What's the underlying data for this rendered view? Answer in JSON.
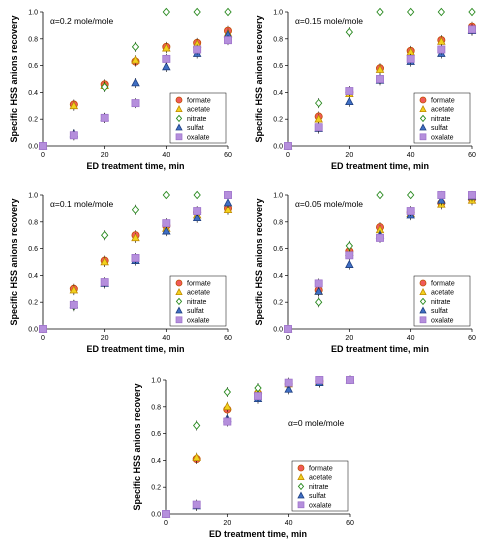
{
  "figure": {
    "colors": {
      "formate": "#f05a5a",
      "acetate": "#f2d21f",
      "nitrate": "#3a9e2e",
      "sulfat": "#3f6fc4",
      "oxalate": "#b58fdc",
      "formate_edge": "#c05000",
      "acetate_edge": "#c08a00",
      "nitrate_edge": "#2a8a20",
      "sulfat_edge": "#1f3f80",
      "oxalate_edge": "#9b6fc9"
    }
  },
  "chart_data": [
    {
      "type": "scatter",
      "annotation": "α=0.2 mole/mole",
      "xlabel": "ED treatment time, min",
      "ylabel": "Specific HSS anions recovery",
      "xlim": [
        0,
        60
      ],
      "ylim": [
        0,
        1.0
      ],
      "xticks": [
        "0",
        "20",
        "40",
        "60"
      ],
      "yticks": [
        "0.0",
        "0.2",
        "0.4",
        "0.6",
        "0.8",
        "1.0"
      ],
      "grid": false,
      "legend_position": "bottom-right",
      "series": [
        {
          "name": "formate",
          "marker": "circle",
          "x": [
            0,
            10,
            20,
            30,
            40,
            50,
            60
          ],
          "y": [
            0,
            0.31,
            0.46,
            0.63,
            0.74,
            0.77,
            0.86
          ]
        },
        {
          "name": "acetate",
          "marker": "triangle",
          "x": [
            0,
            10,
            20,
            30,
            40,
            50,
            60
          ],
          "y": [
            0,
            0.3,
            0.45,
            0.64,
            0.73,
            0.76,
            0.84
          ]
        },
        {
          "name": "nitrate",
          "marker": "diamond",
          "x": [
            0,
            10,
            20,
            30,
            40,
            50,
            60
          ],
          "y": [
            0,
            0.08,
            0.44,
            0.74,
            1.0,
            1.0,
            1.0
          ]
        },
        {
          "name": "sulfat",
          "marker": "triangle",
          "x": [
            0,
            10,
            20,
            30,
            40,
            50,
            60
          ],
          "y": [
            0,
            0.09,
            0.21,
            0.47,
            0.59,
            0.69,
            0.83
          ]
        },
        {
          "name": "oxalate",
          "marker": "square",
          "x": [
            0,
            10,
            20,
            30,
            40,
            50,
            60
          ],
          "y": [
            0,
            0.08,
            0.21,
            0.32,
            0.65,
            0.72,
            0.79
          ]
        }
      ]
    },
    {
      "type": "scatter",
      "annotation": "α=0.15 mole/mole",
      "xlabel": "ED treatment time, min",
      "ylabel": "Specific HSS anions recovery",
      "xlim": [
        0,
        60
      ],
      "ylim": [
        0,
        1.0
      ],
      "xticks": [
        "0",
        "20",
        "40",
        "60"
      ],
      "yticks": [
        "0.0",
        "0.2",
        "0.4",
        "0.6",
        "0.8",
        "1.0"
      ],
      "grid": false,
      "legend_position": "bottom-right",
      "series": [
        {
          "name": "formate",
          "marker": "circle",
          "x": [
            0,
            10,
            20,
            30,
            40,
            50,
            60
          ],
          "y": [
            0,
            0.22,
            0.4,
            0.58,
            0.71,
            0.79,
            0.89
          ]
        },
        {
          "name": "acetate",
          "marker": "triangle",
          "x": [
            0,
            10,
            20,
            30,
            40,
            50,
            60
          ],
          "y": [
            0,
            0.2,
            0.39,
            0.57,
            0.7,
            0.78,
            0.87
          ]
        },
        {
          "name": "nitrate",
          "marker": "diamond",
          "x": [
            0,
            10,
            20,
            30,
            40,
            50,
            60
          ],
          "y": [
            0,
            0.32,
            0.85,
            1.0,
            1.0,
            1.0,
            1.0
          ]
        },
        {
          "name": "sulfat",
          "marker": "triangle",
          "x": [
            0,
            10,
            20,
            30,
            40,
            50,
            60
          ],
          "y": [
            0,
            0.13,
            0.33,
            0.49,
            0.63,
            0.69,
            0.86
          ]
        },
        {
          "name": "oxalate",
          "marker": "square",
          "x": [
            0,
            10,
            20,
            30,
            40,
            50,
            60
          ],
          "y": [
            0,
            0.14,
            0.41,
            0.5,
            0.65,
            0.72,
            0.87
          ]
        }
      ]
    },
    {
      "type": "scatter",
      "annotation": "α=0.1 mole/mole",
      "xlabel": "ED treatment time, min",
      "ylabel": "Specific HSS anions recovery",
      "xlim": [
        0,
        60
      ],
      "ylim": [
        0,
        1.0
      ],
      "xticks": [
        "0",
        "20",
        "40",
        "60"
      ],
      "yticks": [
        "0.0",
        "0.2",
        "0.4",
        "0.6",
        "0.8",
        "1.0"
      ],
      "grid": false,
      "legend_position": "bottom-right",
      "series": [
        {
          "name": "formate",
          "marker": "circle",
          "x": [
            0,
            10,
            20,
            30,
            40,
            50,
            60
          ],
          "y": [
            0,
            0.3,
            0.51,
            0.7,
            0.77,
            0.87,
            0.9
          ]
        },
        {
          "name": "acetate",
          "marker": "triangle",
          "x": [
            0,
            10,
            20,
            30,
            40,
            50,
            60
          ],
          "y": [
            0,
            0.29,
            0.5,
            0.68,
            0.75,
            0.85,
            0.89
          ]
        },
        {
          "name": "nitrate",
          "marker": "diamond",
          "x": [
            0,
            10,
            20,
            30,
            40,
            50,
            60
          ],
          "y": [
            0,
            0.17,
            0.7,
            0.89,
            1.0,
            1.0,
            1.0
          ]
        },
        {
          "name": "sulfat",
          "marker": "triangle",
          "x": [
            0,
            10,
            20,
            30,
            40,
            50,
            60
          ],
          "y": [
            0,
            0.18,
            0.34,
            0.51,
            0.73,
            0.83,
            0.94
          ]
        },
        {
          "name": "oxalate",
          "marker": "square",
          "x": [
            0,
            10,
            20,
            30,
            40,
            50,
            60
          ],
          "y": [
            0,
            0.18,
            0.35,
            0.53,
            0.79,
            0.88,
            1.0
          ]
        }
      ]
    },
    {
      "type": "scatter",
      "annotation": "α=0.05 mole/mole",
      "xlabel": "ED treatment time, min",
      "ylabel": "Specific HSS anions recovery",
      "xlim": [
        0,
        60
      ],
      "ylim": [
        0,
        1.0
      ],
      "xticks": [
        "0",
        "20",
        "40",
        "60"
      ],
      "yticks": [
        "0.0",
        "0.2",
        "0.4",
        "0.6",
        "0.8",
        "1.0"
      ],
      "grid": false,
      "legend_position": "bottom-right",
      "series": [
        {
          "name": "formate",
          "marker": "circle",
          "x": [
            0,
            10,
            20,
            30,
            40,
            50,
            60
          ],
          "y": [
            0,
            0.29,
            0.58,
            0.76,
            0.87,
            0.94,
            0.97
          ]
        },
        {
          "name": "acetate",
          "marker": "triangle",
          "x": [
            0,
            10,
            20,
            30,
            40,
            50,
            60
          ],
          "y": [
            0,
            0.28,
            0.57,
            0.74,
            0.86,
            0.93,
            0.96
          ]
        },
        {
          "name": "nitrate",
          "marker": "diamond",
          "x": [
            0,
            10,
            20,
            30,
            40,
            50,
            60
          ],
          "y": [
            0,
            0.2,
            0.62,
            1.0,
            1.0,
            1.0,
            1.0
          ]
        },
        {
          "name": "sulfat",
          "marker": "triangle",
          "x": [
            0,
            10,
            20,
            30,
            40,
            50,
            60
          ],
          "y": [
            0,
            0.28,
            0.48,
            0.7,
            0.85,
            0.96,
            0.99
          ]
        },
        {
          "name": "oxalate",
          "marker": "square",
          "x": [
            0,
            10,
            20,
            30,
            40,
            50,
            60
          ],
          "y": [
            0,
            0.34,
            0.55,
            0.68,
            0.88,
            1.0,
            1.0
          ]
        }
      ]
    },
    {
      "type": "scatter",
      "annotation": "α=0 mole/mole",
      "xlabel": "ED treatment time, min",
      "ylabel": "Specific HSS anions recovery",
      "xlim": [
        0,
        60
      ],
      "ylim": [
        0,
        1.0
      ],
      "xticks": [
        "0",
        "20",
        "40",
        "60"
      ],
      "yticks": [
        "0.0",
        "0.2",
        "0.4",
        "0.6",
        "0.8",
        "1.0"
      ],
      "grid": false,
      "legend_position": "bottom-right",
      "series": [
        {
          "name": "formate",
          "marker": "circle",
          "x": [
            0,
            10,
            20,
            30,
            40,
            50,
            60
          ],
          "y": [
            0,
            0.41,
            0.78,
            0.9,
            0.97,
            0.99,
            1.0
          ]
        },
        {
          "name": "acetate",
          "marker": "triangle",
          "x": [
            0,
            10,
            20,
            30,
            40,
            50,
            60
          ],
          "y": [
            0,
            0.42,
            0.8,
            0.92,
            0.97,
            0.99,
            1.0
          ]
        },
        {
          "name": "nitrate",
          "marker": "diamond",
          "x": [
            0,
            10,
            20,
            30,
            40,
            50,
            60
          ],
          "y": [
            0,
            0.66,
            0.91,
            0.94,
            0.97,
            0.99,
            1.0
          ]
        },
        {
          "name": "sulfat",
          "marker": "triangle",
          "x": [
            0,
            10,
            20,
            30,
            40,
            50,
            60
          ],
          "y": [
            0,
            0.06,
            0.71,
            0.86,
            0.93,
            0.98,
            1.0
          ]
        },
        {
          "name": "oxalate",
          "marker": "square",
          "x": [
            0,
            10,
            20,
            30,
            40,
            50,
            60
          ],
          "y": [
            0,
            0.07,
            0.69,
            0.88,
            0.98,
            1.0,
            1.0
          ]
        }
      ]
    }
  ]
}
